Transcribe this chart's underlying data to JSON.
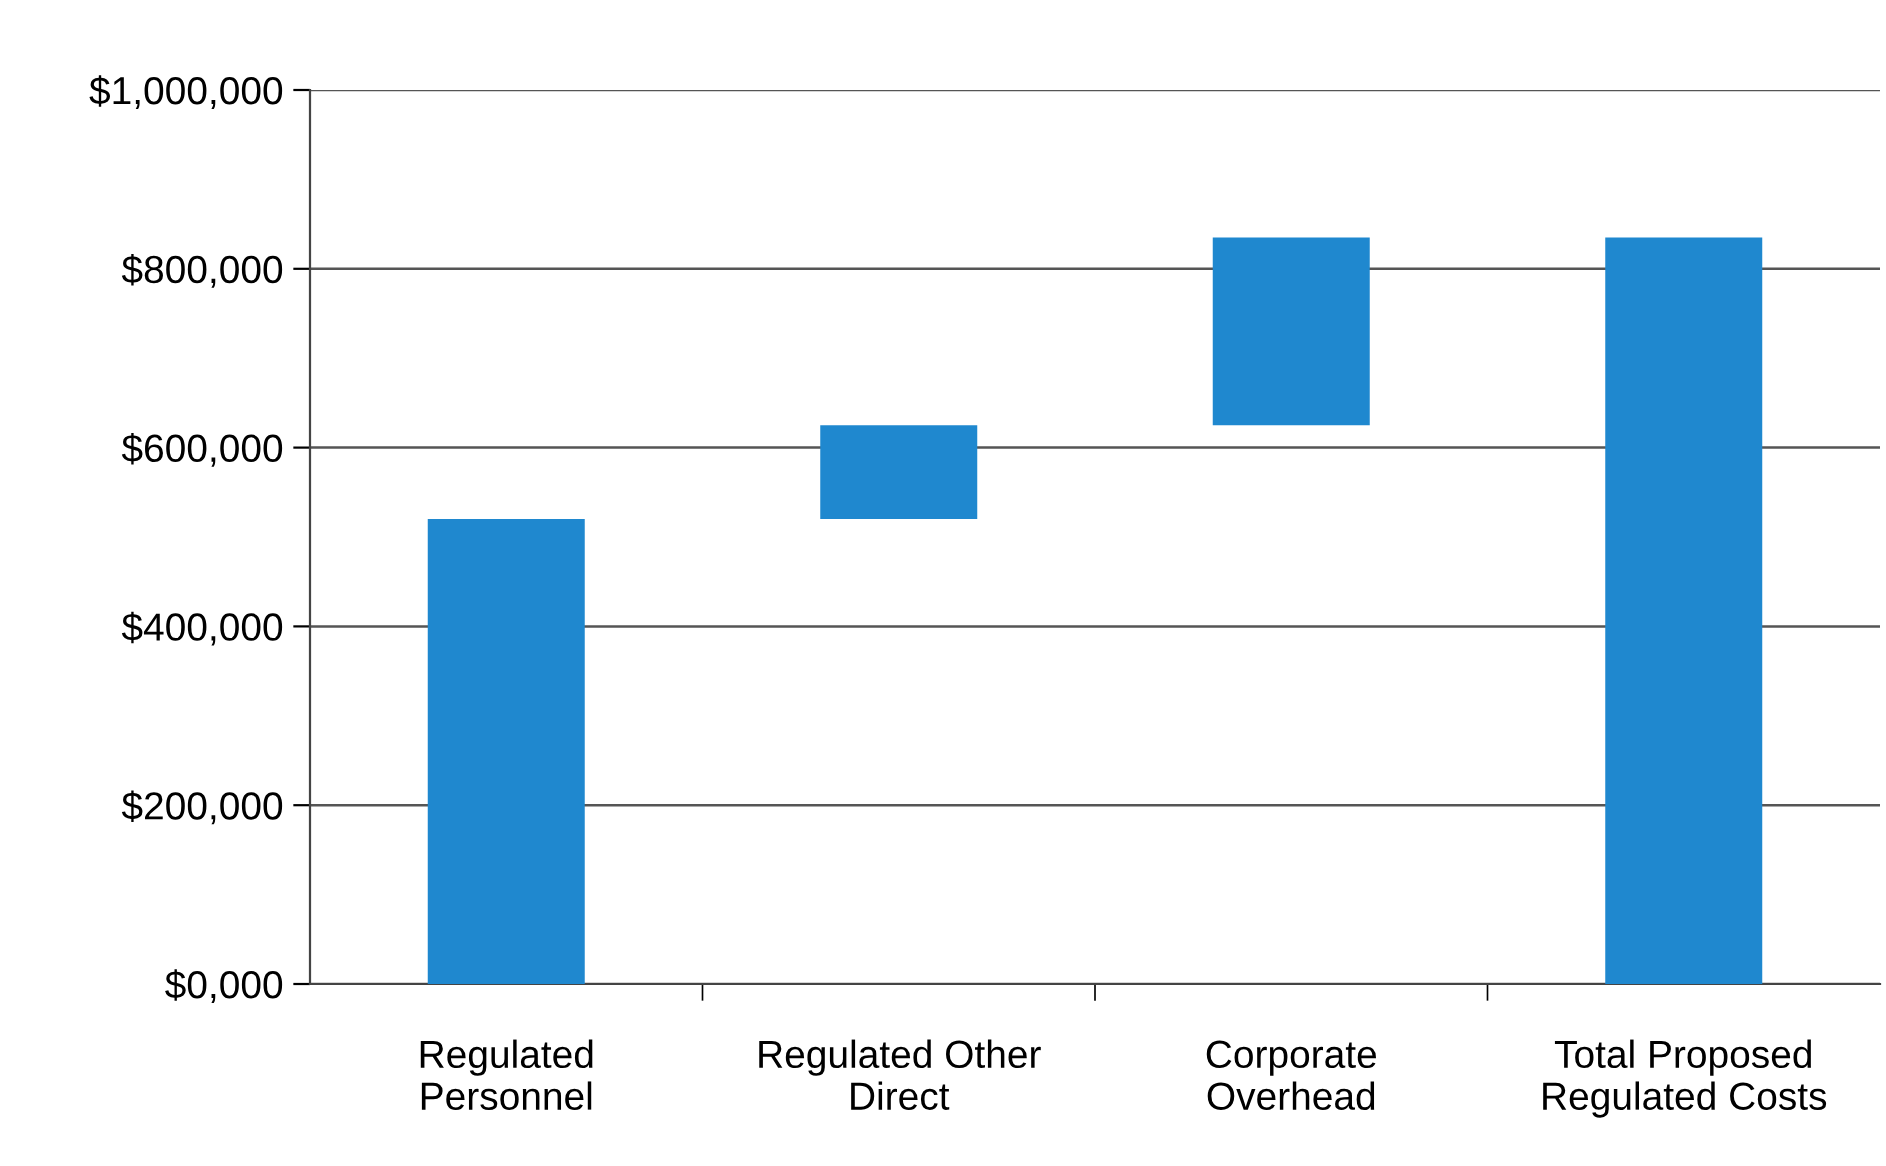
{
  "chart_data": {
    "type": "bar",
    "categories": [
      "Regulated\nPersonnel",
      "Regulated Other\nDirect",
      "Corporate\nOverhead",
      "Total Proposed\nRegulated Costs"
    ],
    "values": [
      520000,
      105000,
      210000,
      835000
    ],
    "base": [
      0,
      520000,
      625000,
      0
    ],
    "color": "#1f88cf",
    "ylim": [
      0,
      1000000
    ],
    "yticks": [
      {
        "value": 0,
        "label": "$0,000"
      },
      {
        "value": 200000,
        "label": "$200,000"
      },
      {
        "value": 400000,
        "label": "$400,000"
      },
      {
        "value": 600000,
        "label": "$600,000"
      },
      {
        "value": 800000,
        "label": "$800,000"
      },
      {
        "value": 1000000,
        "label": "$1,000,000"
      }
    ],
    "grid": "y"
  }
}
